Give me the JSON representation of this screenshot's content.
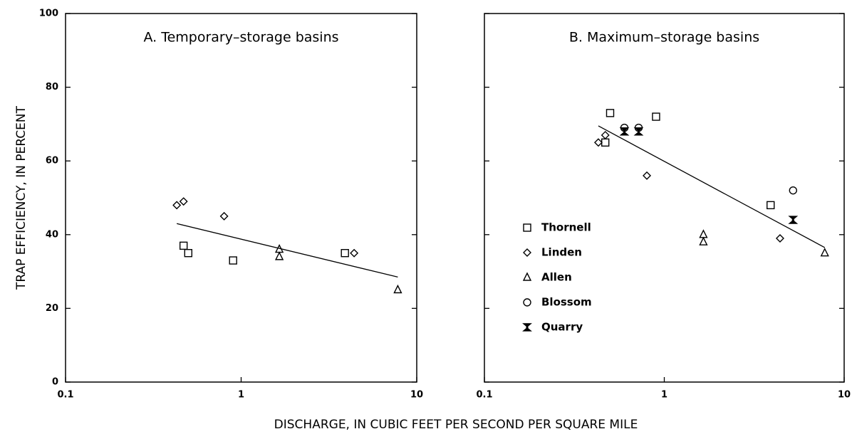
{
  "xlabel": "DISCHARGE, IN CUBIC FEET PER SECOND PER SQUARE MILE",
  "ylabel": "TRAP EFFICIENCY, IN PERCENT",
  "chart_data": [
    {
      "type": "scatter",
      "title": "A. Temporary–storage basins",
      "xscale": "log",
      "xlim": [
        0.1,
        10
      ],
      "xticks": [
        0.1,
        1,
        10
      ],
      "ylim": [
        0,
        100
      ],
      "yticks": [
        0,
        20,
        40,
        60,
        80,
        100
      ],
      "ytick_labels": true,
      "series": [
        {
          "marker": "square",
          "color": "#000",
          "x": [
            0.47,
            0.5,
            0.9,
            3.9
          ],
          "values": [
            37,
            35,
            33,
            35
          ]
        },
        {
          "marker": "diamond",
          "color": "#000",
          "x": [
            0.43,
            0.47,
            0.8,
            4.4
          ],
          "values": [
            48,
            49,
            45,
            35
          ]
        },
        {
          "marker": "triangle",
          "color": "#000",
          "x": [
            1.65,
            1.65,
            7.8
          ],
          "values": [
            36,
            34,
            25
          ]
        }
      ],
      "trend_line": {
        "x": [
          0.43,
          7.8
        ],
        "y": [
          43,
          28.5
        ]
      }
    },
    {
      "type": "scatter",
      "title": "B. Maximum–storage basins",
      "xscale": "log",
      "xlim": [
        0.1,
        10
      ],
      "xticks": [
        0.1,
        1,
        10
      ],
      "ylim": [
        0,
        100
      ],
      "yticks": [
        0,
        20,
        40,
        60,
        80,
        100
      ],
      "ytick_labels": false,
      "legend": "left",
      "series": [
        {
          "name": "Thornell",
          "marker": "square",
          "color": "#000",
          "x": [
            0.47,
            0.5,
            0.9,
            3.9
          ],
          "values": [
            65,
            73,
            72,
            48
          ]
        },
        {
          "name": "Linden",
          "marker": "diamond",
          "color": "#000",
          "x": [
            0.43,
            0.47,
            0.8,
            4.4
          ],
          "values": [
            65,
            67,
            56,
            39
          ]
        },
        {
          "name": "Allen",
          "marker": "triangle",
          "color": "#000",
          "x": [
            1.65,
            1.65,
            7.8
          ],
          "values": [
            40,
            38,
            35
          ]
        },
        {
          "name": "Blossom",
          "marker": "circle",
          "color": "#000",
          "x": [
            0.6,
            0.72,
            5.2
          ],
          "values": [
            69,
            69,
            52
          ]
        },
        {
          "name": "Quarry",
          "marker": "hourglass",
          "color": "#000",
          "x": [
            0.6,
            0.72,
            5.2
          ],
          "values": [
            68,
            68,
            44
          ]
        }
      ],
      "trend_line": {
        "x": [
          0.43,
          7.8
        ],
        "y": [
          69.5,
          36.5
        ]
      }
    }
  ]
}
